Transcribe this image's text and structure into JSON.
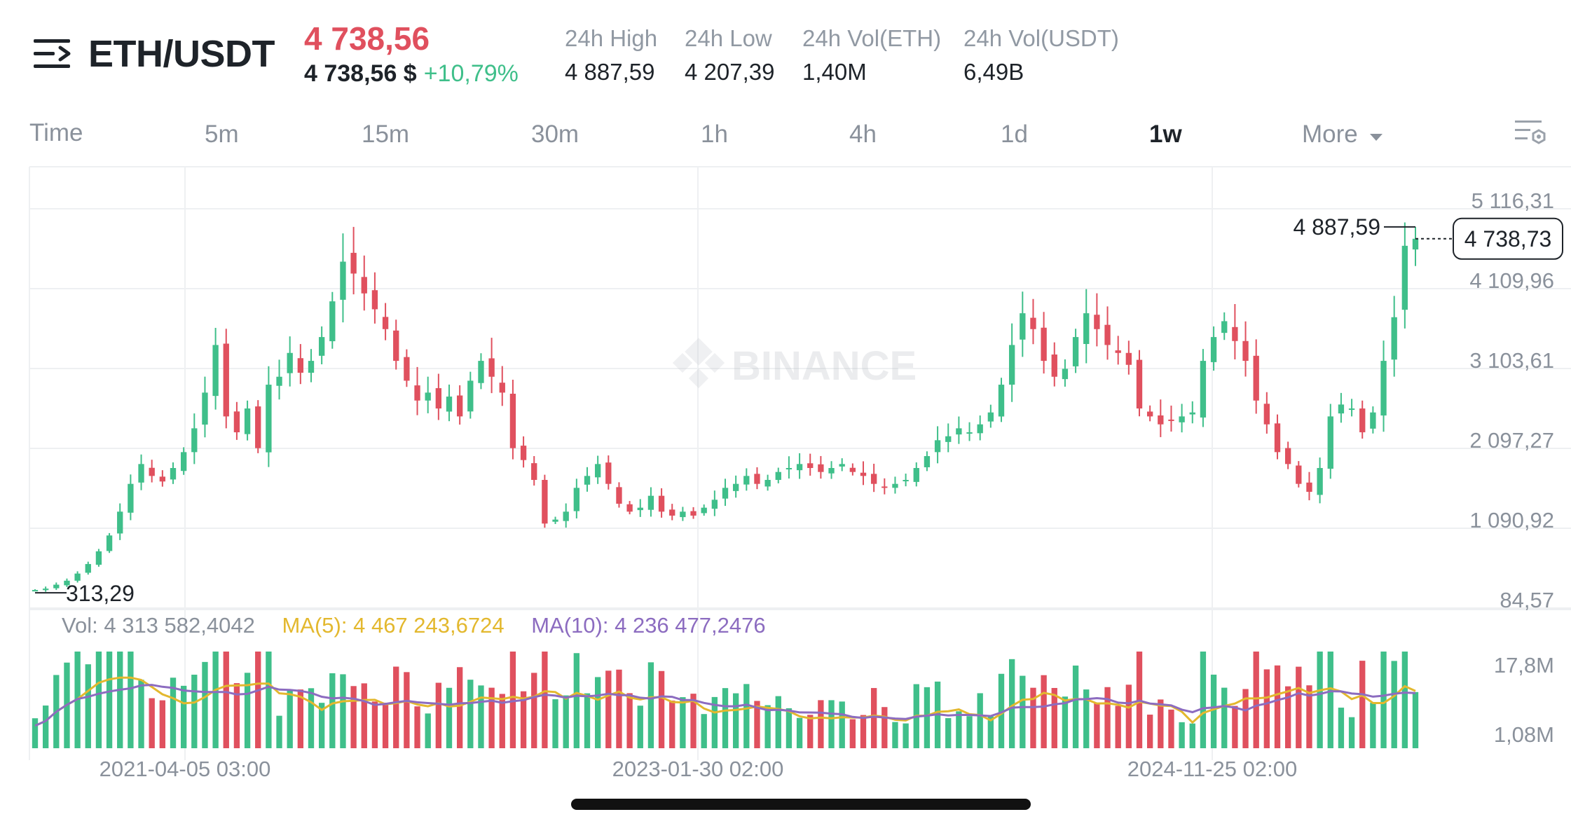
{
  "header": {
    "pair": "ETH/USDT",
    "price": "4 738,56",
    "price_usd": "4 738,56 $",
    "change": "+10,79%",
    "stats": [
      {
        "label": "24h High",
        "value": "4 887,59"
      },
      {
        "label": "24h Low",
        "value": "4 207,39"
      },
      {
        "label": "24h Vol(ETH)",
        "value": "1,40M"
      },
      {
        "label": "24h Vol(USDT)",
        "value": "6,49B"
      }
    ]
  },
  "timeframes": {
    "time": "Time",
    "items": [
      "5m",
      "15m",
      "30m",
      "1h",
      "4h",
      "1d",
      "1w"
    ],
    "active": "1w",
    "more": "More"
  },
  "watermark": "BINANCE",
  "colors": {
    "up": "#3fbf8a",
    "down": "#e0505e",
    "ma5": "#e3b82e",
    "ma10": "#8c6cc0",
    "grid": "#eef0f2"
  },
  "chart_data": {
    "type": "candlestick",
    "interval": "1w",
    "y_ticks": [
      "5 116,31",
      "4 109,96",
      "3 103,61",
      "2 097,27",
      "1 090,92",
      "84,57"
    ],
    "ylim": [
      84.57,
      5116.31
    ],
    "x_ticks": [
      "2021-04-05 03:00",
      "2023-01-30 02:00",
      "2024-11-25 02:00"
    ],
    "last_price_label": "4 738,73",
    "last_price": 4738.73,
    "max_label": "4 887,59",
    "max_value": 4887.59,
    "min_label": "313,29",
    "min_value": 313.29,
    "close_series": [
      313,
      330,
      380,
      430,
      520,
      640,
      800,
      1000,
      1300,
      1650,
      1900,
      1750,
      1680,
      1850,
      2050,
      2350,
      2800,
      3400,
      2500,
      2300,
      2600,
      2100,
      2900,
      3000,
      3300,
      3050,
      3200,
      3500,
      3950,
      4450,
      4300,
      4050,
      3850,
      3600,
      3200,
      2950,
      2700,
      2800,
      2600,
      2750,
      2500,
      2950,
      3200,
      3000,
      2800,
      2100,
      1950,
      1700,
      1150,
      1200,
      1300,
      1600,
      1750,
      1900,
      1650,
      1400,
      1300,
      1350,
      1500,
      1300,
      1250,
      1300,
      1250,
      1350,
      1450,
      1600,
      1650,
      1750,
      1650,
      1700,
      1800,
      1850,
      1900,
      1850,
      1800,
      1850,
      1900,
      1800,
      1750,
      1650,
      1600,
      1650,
      1700,
      1850,
      2000,
      2200,
      2250,
      2350,
      2300,
      2400,
      2550,
      2900,
      3400,
      3800,
      3600,
      3200,
      3000,
      3100,
      3500,
      3800,
      3600,
      3400,
      3300,
      3150,
      2600,
      2500,
      2400,
      2450,
      2500,
      2550,
      3200,
      3500,
      3700,
      3450,
      3200,
      2700,
      2400,
      2050,
      1900,
      1650,
      1550,
      1850,
      2500,
      2650,
      2600,
      2300,
      2550,
      3200,
      3750,
      4650,
      4738.73
    ],
    "volume": {
      "label": "Vol",
      "value": "4 313 582,4042",
      "ma5_label": "MA(5)",
      "ma5": "4 467 243,6724",
      "ma10_label": "MA(10)",
      "ma10": "4 236 477,2476",
      "y_ticks": [
        "17,8M",
        "1,08M"
      ]
    }
  }
}
